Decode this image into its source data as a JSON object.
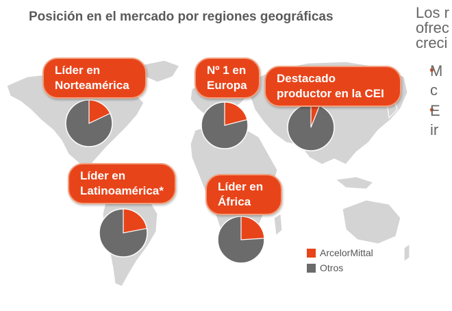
{
  "title": "Posición en el mercado por regiones geográficas",
  "side_text": "Los r\nofrec\ncreci",
  "bullets": [
    "M\nc",
    "E\nir"
  ],
  "colors": {
    "accent": "#e8441a",
    "other": "#6b6b6b",
    "map": "#d4d4d4"
  },
  "regions": [
    {
      "label": "Líder en\nNorteamérica",
      "arcelormittal_share": 0.18
    },
    {
      "label": "Nº 1 en\nEuropa",
      "arcelormittal_share": 0.21
    },
    {
      "label": "Destacado\nproductor en la CEI",
      "arcelormittal_share": 0.06
    },
    {
      "label": "Líder en\nLatinoamérica*",
      "arcelormittal_share": 0.22
    },
    {
      "label": "Líder en\nÁfrica",
      "arcelormittal_share": 0.24
    }
  ],
  "legend": [
    {
      "label": "ArcelorMittal",
      "color": "#e8441a"
    },
    {
      "label": "Otros",
      "color": "#6b6b6b"
    }
  ]
}
